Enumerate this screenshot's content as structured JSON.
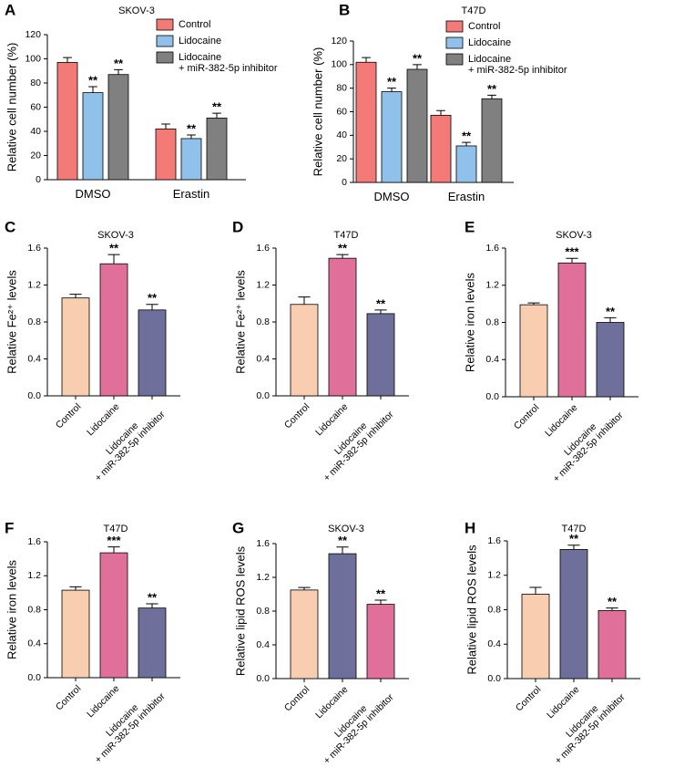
{
  "chart_data": [
    {
      "type": "grouped_bar",
      "panel": "A",
      "title": "SKOV-3",
      "ylabel": "Relative cell number (%)",
      "categories": [
        "DMSO",
        "Erastin"
      ],
      "series": [
        {
          "name": "Control",
          "color": "#f47a78",
          "values": [
            97,
            42
          ],
          "errors": [
            4,
            4
          ],
          "significance": [
            null,
            null
          ]
        },
        {
          "name": "Lidocaine",
          "color": "#8fc1ea",
          "values": [
            72,
            34
          ],
          "errors": [
            5,
            3
          ],
          "significance": [
            "**",
            "**"
          ]
        },
        {
          "name": "Lidocaine\n+ miR-382-5p inhibitor",
          "color": "#808080",
          "values": [
            87,
            51
          ],
          "errors": [
            4,
            4
          ],
          "significance": [
            "**",
            "**"
          ]
        }
      ],
      "ylim": [
        0,
        120
      ],
      "yticks": [
        0,
        20,
        40,
        60,
        80,
        100,
        120
      ]
    },
    {
      "type": "grouped_bar",
      "panel": "B",
      "title": "T47D",
      "ylabel": "Relative cell number (%)",
      "categories": [
        "DMSO",
        "Erastin"
      ],
      "series": [
        {
          "name": "Control",
          "color": "#f47a78",
          "values": [
            102,
            57
          ],
          "errors": [
            4,
            4
          ],
          "significance": [
            null,
            null
          ]
        },
        {
          "name": "Lidocaine",
          "color": "#8fc1ea",
          "values": [
            77,
            31
          ],
          "errors": [
            3,
            3
          ],
          "significance": [
            "**",
            "**"
          ]
        },
        {
          "name": "Lidocaine\n+ miR-382-5p inhibitor",
          "color": "#808080",
          "values": [
            96,
            71
          ],
          "errors": [
            4,
            3
          ],
          "significance": [
            "**",
            "**"
          ]
        }
      ],
      "ylim": [
        0,
        120
      ],
      "yticks": [
        0,
        20,
        40,
        60,
        80,
        100,
        120
      ]
    },
    {
      "type": "bar",
      "panel": "C",
      "title": "SKOV-3",
      "ylabel": "Relative Fe²⁺ levels",
      "categories": [
        "Control",
        "Lidocaine",
        "Lidocaine\n+ miR-382-5p inhibitor"
      ],
      "values": [
        1.06,
        1.43,
        0.93
      ],
      "errors": [
        0.04,
        0.1,
        0.06
      ],
      "significance": [
        null,
        "**",
        "**"
      ],
      "colors": [
        "#f9cdb0",
        "#e0709a",
        "#6e6f9a"
      ],
      "ylim": [
        0,
        1.6
      ],
      "yticks": [
        {
          "value": 0,
          "label": "0.0"
        },
        0.4,
        0.8,
        1.2,
        1.6
      ]
    },
    {
      "type": "bar",
      "panel": "D",
      "title": "T47D",
      "ylabel": "Relative Fe²⁺ levels",
      "categories": [
        "Control",
        "Lidocaine",
        "Lidocaine\n+ miR-382-5p inhibitor"
      ],
      "values": [
        0.99,
        1.49,
        0.89
      ],
      "errors": [
        0.08,
        0.04,
        0.04
      ],
      "significance": [
        null,
        "**",
        "**"
      ],
      "colors": [
        "#f9cdb0",
        "#e0709a",
        "#6e6f9a"
      ],
      "ylim": [
        0,
        1.6
      ],
      "yticks": [
        {
          "value": 0,
          "label": "0.0"
        },
        0.4,
        0.8,
        1.2,
        1.6
      ]
    },
    {
      "type": "bar",
      "panel": "E",
      "title": "SKOV-3",
      "ylabel": "Relative iron levels",
      "categories": [
        "Control",
        "Lidocaine",
        "Lidocaine\n+ miR-382-5p inhibitor"
      ],
      "values": [
        0.99,
        1.44,
        0.8
      ],
      "errors": [
        0.02,
        0.05,
        0.05
      ],
      "significance": [
        null,
        "***",
        "**"
      ],
      "colors": [
        "#f9cdb0",
        "#e0709a",
        "#6e6f9a"
      ],
      "ylim": [
        0,
        1.6
      ],
      "yticks": [
        {
          "value": 0,
          "label": "0.0"
        },
        0.4,
        0.8,
        1.2,
        1.6
      ]
    },
    {
      "type": "bar",
      "panel": "F",
      "title": "T47D",
      "ylabel": "Relative iron levels",
      "categories": [
        "Control",
        "Lidocaine",
        "Lidocaine\n+ miR-382-5p inhibitor"
      ],
      "values": [
        1.03,
        1.47,
        0.82
      ],
      "errors": [
        0.04,
        0.07,
        0.05
      ],
      "significance": [
        null,
        "***",
        "**"
      ],
      "colors": [
        "#f9cdb0",
        "#e0709a",
        "#6e6f9a"
      ],
      "ylim": [
        0,
        1.6
      ],
      "yticks": [
        {
          "value": 0,
          "label": "0.0"
        },
        0.4,
        0.8,
        1.2,
        1.6
      ]
    },
    {
      "type": "bar",
      "panel": "G",
      "title": "SKOV-3",
      "ylabel": "Relative lipid ROS levels",
      "categories": [
        "Control",
        "Lidocaine",
        "Lidocaine\n+ miR-382-5p inhibitor"
      ],
      "values": [
        1.05,
        1.48,
        0.88
      ],
      "errors": [
        0.03,
        0.08,
        0.05
      ],
      "significance": [
        null,
        "**",
        "**"
      ],
      "colors": [
        "#f9cdb0",
        "#6e6f9a",
        "#e0709a"
      ],
      "ylim": [
        0,
        1.6
      ],
      "yticks": [
        {
          "value": 0,
          "label": "0.0"
        },
        0.4,
        0.8,
        1.2,
        1.6
      ]
    },
    {
      "type": "bar",
      "panel": "H",
      "title": "T47D",
      "ylabel": "Relative lipid ROS levels",
      "categories": [
        "Control",
        "Lidocaine",
        "Lidocaine\n+ miR-382-5p inhibitor"
      ],
      "values": [
        0.98,
        1.5,
        0.79
      ],
      "errors": [
        0.08,
        0.05,
        0.03
      ],
      "significance": [
        null,
        "**",
        "**"
      ],
      "colors": [
        "#f9cdb0",
        "#6e6f9a",
        "#e0709a"
      ],
      "ylim": [
        0,
        1.6
      ],
      "yticks": [
        {
          "value": 0,
          "label": "0.0"
        },
        0.4,
        0.8,
        1.2,
        1.6
      ]
    }
  ]
}
